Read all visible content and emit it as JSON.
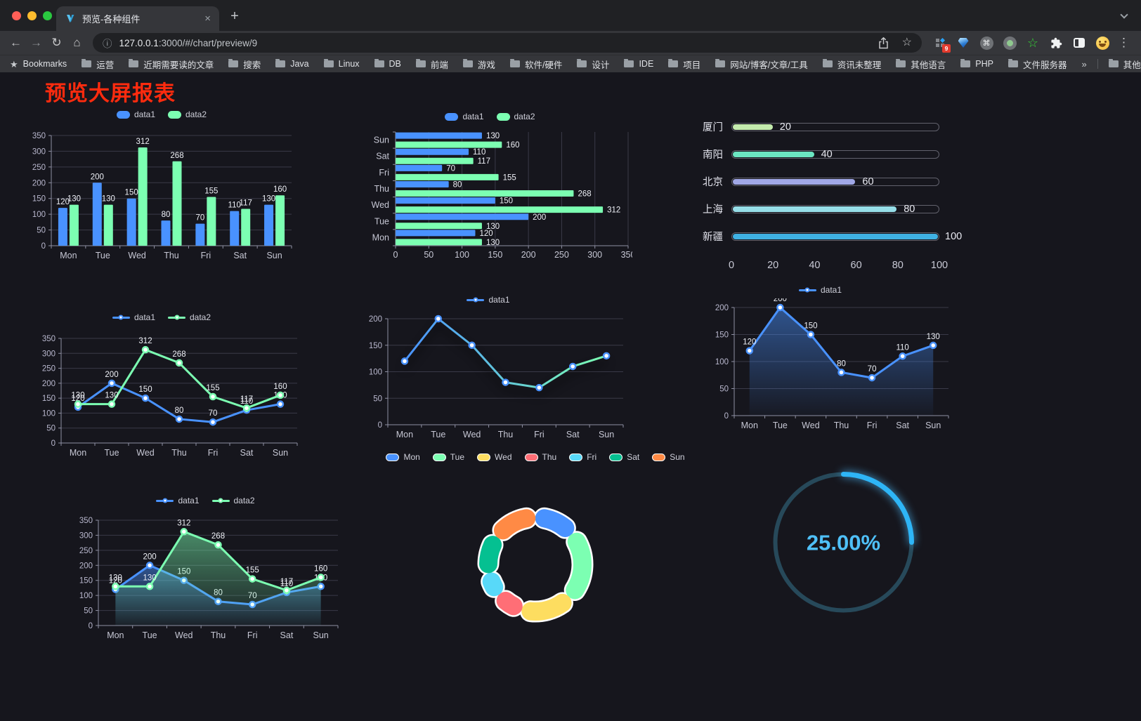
{
  "browser": {
    "tab_title": "预览-各种组件",
    "close_glyph": "×",
    "new_tab_glyph": "+",
    "back_glyph": "←",
    "forward_glyph": "→",
    "reload_glyph": "↻",
    "home_glyph": "⌂",
    "info_glyph": "ⓘ",
    "url_host": "127.0.0.1",
    "url_rest": ":3000/#/chart/preview/9",
    "star_glyph": "☆",
    "menu_glyph": "⋮",
    "extension_badge": "9",
    "cmd_glyph": "⌘",
    "ext_star_glyph": "☆",
    "bookmarks_star_glyph": "★",
    "bookmarks_label": "Bookmarks",
    "bookmark_folders": [
      "运营",
      "近期需要读的文章",
      "搜索",
      "Java",
      "Linux",
      "DB",
      "前端",
      "游戏",
      "软件/硬件",
      "设计",
      "IDE",
      "项目",
      "网站/博客/文章/工具",
      "资讯未整理",
      "其他语言",
      "PHP",
      "文件服务器"
    ],
    "bookmarks_overflow_glyph": "»",
    "other_bookmarks_label": "其他书签"
  },
  "page": {
    "title": "预览大屏报表",
    "title_color": "#ff2b0e",
    "background": "#16161d"
  },
  "chart_data": [
    {
      "id": "bar-grouped",
      "type": "bar",
      "legend": [
        "data1",
        "data2"
      ],
      "categories": [
        "Mon",
        "Tue",
        "Wed",
        "Thu",
        "Fri",
        "Sat",
        "Sun"
      ],
      "series": [
        {
          "name": "data1",
          "color": "#4992ff",
          "values": [
            120,
            200,
            150,
            80,
            70,
            110,
            130
          ]
        },
        {
          "name": "data2",
          "color": "#7cffb2",
          "values": [
            130,
            130,
            312,
            268,
            155,
            117,
            160
          ]
        }
      ],
      "ylim": [
        0,
        350
      ],
      "ytick": 50,
      "value_labels": true,
      "grid": true,
      "legend_position": "top"
    },
    {
      "id": "bar-horizontal",
      "type": "hbar",
      "legend": [
        "data1",
        "data2"
      ],
      "categories": [
        "Mon",
        "Tue",
        "Wed",
        "Thu",
        "Fri",
        "Sat",
        "Sun"
      ],
      "series": [
        {
          "name": "data1",
          "color": "#4992ff",
          "values": [
            120,
            200,
            150,
            80,
            70,
            110,
            130
          ]
        },
        {
          "name": "data2",
          "color": "#7cffb2",
          "values": [
            130,
            130,
            312,
            268,
            155,
            117,
            160
          ]
        }
      ],
      "xlim": [
        0,
        350
      ],
      "xtick": 50,
      "value_labels": true,
      "grid": true,
      "legend_position": "top"
    },
    {
      "id": "city-progress",
      "type": "progress",
      "rows": [
        {
          "label": "厦门",
          "value": 20,
          "color": "#c4ebad"
        },
        {
          "label": "南阳",
          "value": 40,
          "color": "#6be6c1"
        },
        {
          "label": "北京",
          "value": 60,
          "color": "#a0a7e6"
        },
        {
          "label": "上海",
          "value": 80,
          "color": "#96dee8"
        },
        {
          "label": "新疆",
          "value": 100,
          "color": "#3fb1e3"
        }
      ],
      "xlim": [
        0,
        100
      ],
      "xticks": [
        0,
        20,
        40,
        60,
        80,
        100
      ]
    },
    {
      "id": "line-two",
      "type": "line",
      "legend": [
        "data1",
        "data2"
      ],
      "categories": [
        "Mon",
        "Tue",
        "Wed",
        "Thu",
        "Fri",
        "Sat",
        "Sun"
      ],
      "series": [
        {
          "name": "data1",
          "color": "#4992ff",
          "values": [
            120,
            200,
            150,
            80,
            70,
            110,
            130
          ]
        },
        {
          "name": "data2",
          "color": "#7cffb2",
          "values": [
            130,
            130,
            312,
            268,
            155,
            117,
            160
          ]
        }
      ],
      "ylim": [
        0,
        350
      ],
      "ytick": 50,
      "value_labels": true,
      "grid": true,
      "legend_position": "top"
    },
    {
      "id": "line-gradient",
      "type": "line",
      "legend": [
        "data1"
      ],
      "categories": [
        "Mon",
        "Tue",
        "Wed",
        "Thu",
        "Fri",
        "Sat",
        "Sun"
      ],
      "series": [
        {
          "name": "data1",
          "color": "#4992ff",
          "gradient": [
            "#4992ff",
            "#7cffb2"
          ],
          "values": [
            120,
            200,
            150,
            80,
            70,
            110,
            130
          ]
        }
      ],
      "ylim": [
        0,
        200
      ],
      "ytick": 50,
      "value_labels": false,
      "shadow": true,
      "grid": true,
      "legend_position": "top"
    },
    {
      "id": "area-one",
      "type": "area",
      "legend": [
        "data1"
      ],
      "categories": [
        "Mon",
        "Tue",
        "Wed",
        "Thu",
        "Fri",
        "Sat",
        "Sun"
      ],
      "series": [
        {
          "name": "data1",
          "color": "#4992ff",
          "values": [
            120,
            200,
            150,
            80,
            70,
            110,
            130
          ]
        }
      ],
      "ylim": [
        0,
        200
      ],
      "ytick": 50,
      "value_labels": true,
      "grid": true,
      "legend_position": "top"
    },
    {
      "id": "area-two",
      "type": "area",
      "legend": [
        "data1",
        "data2"
      ],
      "categories": [
        "Mon",
        "Tue",
        "Wed",
        "Thu",
        "Fri",
        "Sat",
        "Sun"
      ],
      "series": [
        {
          "name": "data1",
          "color": "#4992ff",
          "values": [
            120,
            200,
            150,
            80,
            70,
            110,
            130
          ]
        },
        {
          "name": "data2",
          "color": "#7cffb2",
          "values": [
            130,
            130,
            312,
            268,
            155,
            117,
            160
          ]
        }
      ],
      "ylim": [
        0,
        350
      ],
      "ytick": 50,
      "value_labels": true,
      "grid": true,
      "legend_position": "top"
    },
    {
      "id": "donut",
      "type": "pie",
      "inner_radius_ratio": 0.67,
      "items": [
        {
          "label": "Mon",
          "value": 120,
          "color": "#4992ff"
        },
        {
          "label": "Tue",
          "value": 200,
          "color": "#7cffb2"
        },
        {
          "label": "Wed",
          "value": 150,
          "color": "#fddd60"
        },
        {
          "label": "Thu",
          "value": 80,
          "color": "#ff6e76"
        },
        {
          "label": "Fri",
          "value": 70,
          "color": "#58d9f9"
        },
        {
          "label": "Sat",
          "value": 110,
          "color": "#05c091"
        },
        {
          "label": "Sun",
          "value": 130,
          "color": "#ff8a45"
        }
      ],
      "legend_position": "top"
    },
    {
      "id": "gauge",
      "type": "gauge",
      "percent": 25,
      "label": "25.00%",
      "color": "#2eb5f6",
      "track_color": "#27495a",
      "text_color": "#4fc0f8"
    }
  ]
}
